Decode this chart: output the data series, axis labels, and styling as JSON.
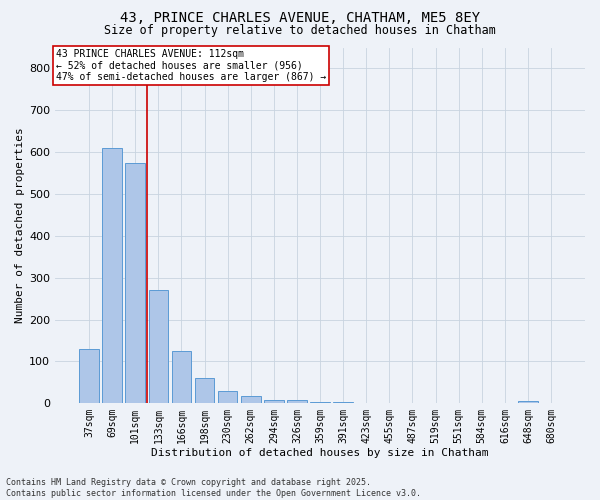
{
  "title_line1": "43, PRINCE CHARLES AVENUE, CHATHAM, ME5 8EY",
  "title_line2": "Size of property relative to detached houses in Chatham",
  "xlabel": "Distribution of detached houses by size in Chatham",
  "ylabel": "Number of detached properties",
  "categories": [
    "37sqm",
    "69sqm",
    "101sqm",
    "133sqm",
    "166sqm",
    "198sqm",
    "230sqm",
    "262sqm",
    "294sqm",
    "326sqm",
    "359sqm",
    "391sqm",
    "423sqm",
    "455sqm",
    "487sqm",
    "519sqm",
    "551sqm",
    "584sqm",
    "616sqm",
    "648sqm",
    "680sqm"
  ],
  "values": [
    130,
    610,
    575,
    270,
    125,
    60,
    30,
    18,
    7,
    7,
    3,
    2,
    1,
    0,
    1,
    0,
    0,
    0,
    0,
    5,
    1
  ],
  "bar_color": "#aec6e8",
  "bar_edge_color": "#5b9bd5",
  "vline_x": 2.5,
  "vline_color": "#cc0000",
  "annotation_text": "43 PRINCE CHARLES AVENUE: 112sqm\n← 52% of detached houses are smaller (956)\n47% of semi-detached houses are larger (867) →",
  "annotation_box_color": "#ffffff",
  "annotation_box_edge_color": "#cc0000",
  "ylim": [
    0,
    850
  ],
  "yticks": [
    0,
    100,
    200,
    300,
    400,
    500,
    600,
    700,
    800
  ],
  "background_color": "#eef2f8",
  "grid_color": "#c8d4e0",
  "footer_line1": "Contains HM Land Registry data © Crown copyright and database right 2025.",
  "footer_line2": "Contains public sector information licensed under the Open Government Licence v3.0.",
  "title_fontsize": 10,
  "subtitle_fontsize": 8.5,
  "tick_fontsize": 7,
  "ylabel_fontsize": 8,
  "xlabel_fontsize": 8,
  "annot_fontsize": 7
}
